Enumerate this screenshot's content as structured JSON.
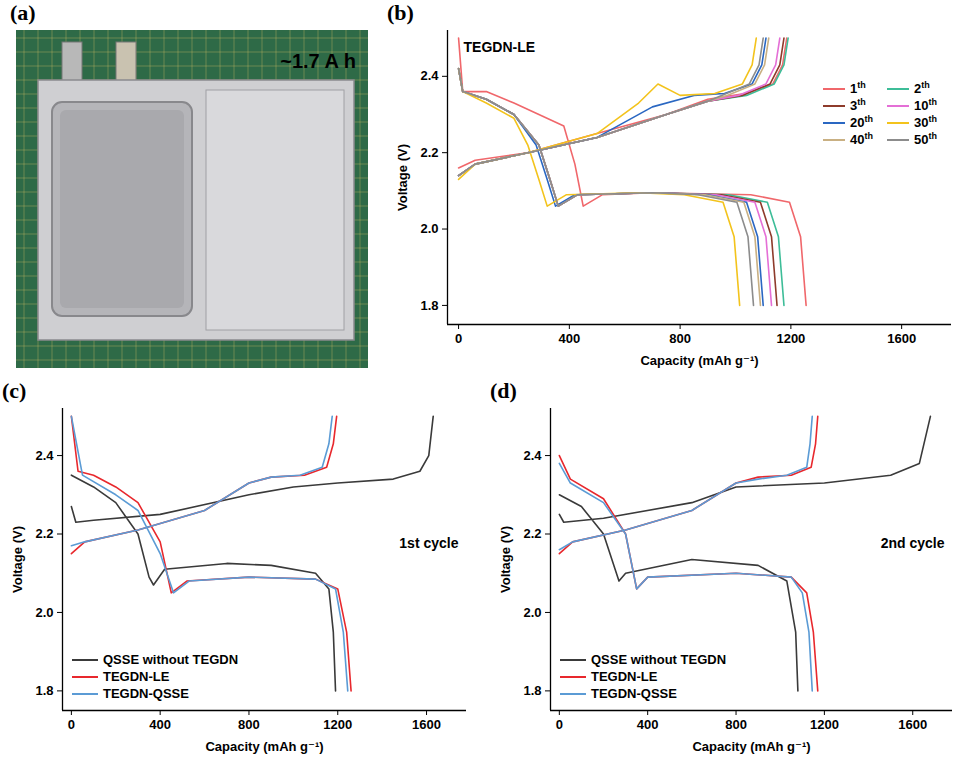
{
  "chart_data": [
    {
      "type": "image",
      "panel": "(a)",
      "annotation": "~1.7 A h"
    },
    {
      "type": "line",
      "panel": "(b)",
      "title": "TEGDN-LE",
      "x_label": "Capacity (mAh g⁻¹)",
      "y_label": "Voltage (V)",
      "xlim": [
        -40,
        1780
      ],
      "ylim": [
        1.75,
        2.52
      ],
      "xticks": [
        0,
        400,
        800,
        1200,
        1600
      ],
      "yticks": [
        1.8,
        {
          "value": 2,
          "label": "2.0"
        },
        2.2,
        2.4
      ],
      "legend": "upper right",
      "series": [
        {
          "name": "1th",
          "color": "#f0676b",
          "x": [
            0,
            15,
            100,
            200,
            380,
            420,
            450,
            520,
            700,
            1055,
            1195,
            1235,
            1255,
            null,
            0,
            60,
            250,
            500,
            750,
            900,
            1035,
            1135,
            1170,
            1185
          ],
          "values": [
            2.5,
            2.36,
            2.36,
            2.33,
            2.27,
            2.17,
            2.06,
            2.09,
            2.095,
            2.09,
            2.07,
            1.98,
            1.8,
            null,
            2.16,
            2.18,
            2.2,
            2.25,
            2.3,
            2.34,
            2.355,
            2.38,
            2.43,
            2.5
          ]
        },
        {
          "name": "2th",
          "color": "#3dbd98",
          "x": [
            0,
            15,
            100,
            200,
            290,
            330,
            360,
            430,
            700,
            975,
            1115,
            1155,
            1175,
            null,
            0,
            60,
            250,
            500,
            750,
            900,
            1040,
            1140,
            1175,
            1190
          ],
          "values": [
            2.42,
            2.36,
            2.34,
            2.3,
            2.22,
            2.13,
            2.06,
            2.09,
            2.095,
            2.09,
            2.07,
            1.98,
            1.8,
            null,
            2.14,
            2.17,
            2.2,
            2.24,
            2.3,
            2.335,
            2.35,
            2.38,
            2.43,
            2.5
          ]
        },
        {
          "name": "3th",
          "color": "#8e3b2b",
          "x": [
            0,
            15,
            100,
            200,
            290,
            330,
            360,
            430,
            700,
            950,
            1090,
            1130,
            1150,
            null,
            0,
            60,
            250,
            500,
            750,
            900,
            1025,
            1125,
            1160,
            1175
          ],
          "values": [
            2.42,
            2.36,
            2.34,
            2.3,
            2.22,
            2.13,
            2.06,
            2.09,
            2.095,
            2.09,
            2.07,
            1.98,
            1.8,
            null,
            2.14,
            2.17,
            2.2,
            2.24,
            2.3,
            2.335,
            2.35,
            2.38,
            2.43,
            2.5
          ]
        },
        {
          "name": "10th",
          "color": "#e46fd6",
          "x": [
            0,
            15,
            100,
            200,
            290,
            330,
            360,
            430,
            700,
            930,
            1070,
            1110,
            1130,
            null,
            0,
            60,
            250,
            500,
            750,
            900,
            1010,
            1110,
            1145,
            1160
          ],
          "values": [
            2.42,
            2.36,
            2.34,
            2.3,
            2.22,
            2.13,
            2.06,
            2.09,
            2.095,
            2.09,
            2.07,
            1.98,
            1.8,
            null,
            2.14,
            2.17,
            2.2,
            2.24,
            2.3,
            2.335,
            2.35,
            2.38,
            2.43,
            2.5
          ]
        },
        {
          "name": "20th",
          "color": "#2a67c2",
          "x": [
            0,
            15,
            100,
            200,
            280,
            320,
            350,
            420,
            700,
            900,
            1040,
            1080,
            1100,
            null,
            0,
            60,
            250,
            500,
            700,
            850,
            960,
            1060,
            1095,
            1110
          ],
          "values": [
            2.42,
            2.36,
            2.34,
            2.3,
            2.22,
            2.13,
            2.06,
            2.09,
            2.095,
            2.09,
            2.07,
            1.98,
            1.8,
            null,
            2.14,
            2.17,
            2.2,
            2.24,
            2.32,
            2.35,
            2.355,
            2.38,
            2.43,
            2.5
          ]
        },
        {
          "name": "30th",
          "color": "#f3c31c",
          "x": [
            0,
            15,
            100,
            200,
            250,
            290,
            320,
            390,
            650,
            815,
            955,
            995,
            1015,
            null,
            0,
            60,
            250,
            500,
            650,
            720,
            800,
            925,
            1025,
            1060,
            1075
          ],
          "values": [
            2.42,
            2.36,
            2.33,
            2.29,
            2.22,
            2.13,
            2.06,
            2.09,
            2.095,
            2.09,
            2.07,
            1.98,
            1.8,
            null,
            2.13,
            2.17,
            2.2,
            2.25,
            2.33,
            2.38,
            2.35,
            2.355,
            2.38,
            2.43,
            2.5
          ]
        },
        {
          "name": "40th",
          "color": "#c9b083",
          "x": [
            0,
            15,
            100,
            200,
            290,
            330,
            360,
            430,
            700,
            890,
            1030,
            1070,
            1090,
            null,
            0,
            60,
            250,
            500,
            750,
            900,
            970,
            1070,
            1105,
            1120
          ],
          "values": [
            2.42,
            2.36,
            2.34,
            2.3,
            2.22,
            2.13,
            2.06,
            2.09,
            2.095,
            2.09,
            2.07,
            1.98,
            1.8,
            null,
            2.14,
            2.17,
            2.2,
            2.24,
            2.3,
            2.335,
            2.35,
            2.38,
            2.43,
            2.5
          ]
        },
        {
          "name": "50th",
          "color": "#8c8c8c",
          "x": [
            0,
            15,
            100,
            200,
            290,
            330,
            360,
            430,
            700,
            865,
            1005,
            1045,
            1065,
            null,
            0,
            60,
            250,
            500,
            750,
            900,
            950,
            1050,
            1085,
            1100
          ],
          "values": [
            2.42,
            2.36,
            2.34,
            2.3,
            2.22,
            2.13,
            2.06,
            2.09,
            2.095,
            2.09,
            2.07,
            1.98,
            1.8,
            null,
            2.14,
            2.17,
            2.2,
            2.24,
            2.3,
            2.335,
            2.35,
            2.38,
            2.43,
            2.5
          ]
        }
      ]
    },
    {
      "type": "line",
      "panel": "(c)",
      "annotation": "1st cycle",
      "x_label": "Capacity (mAh g⁻¹)",
      "y_label": "Voltage (V)",
      "xlim": [
        -40,
        1780
      ],
      "ylim": [
        1.75,
        2.52
      ],
      "xticks": [
        0,
        400,
        800,
        1200,
        1600
      ],
      "yticks": [
        1.8,
        {
          "value": 2,
          "label": "2.0"
        },
        2.2,
        2.4
      ],
      "legend": "lower left",
      "series": [
        {
          "name": "QSSE without TEGDN",
          "color": "#3a3a3a",
          "x": [
            0,
            100,
            200,
            300,
            350,
            370,
            420,
            700,
            900,
            1100,
            1160,
            1180,
            1190,
            null,
            0,
            20,
            100,
            400,
            800,
            1000,
            1200,
            1450,
            1570,
            1610,
            1630
          ],
          "values": [
            2.35,
            2.32,
            2.28,
            2.2,
            2.09,
            2.07,
            2.11,
            2.125,
            2.12,
            2.1,
            2.06,
            1.95,
            1.8,
            null,
            2.27,
            2.23,
            2.235,
            2.25,
            2.3,
            2.32,
            2.33,
            2.34,
            2.36,
            2.4,
            2.5
          ]
        },
        {
          "name": "TEGDN-LE",
          "color": "#e8282d",
          "x": [
            0,
            30,
            100,
            200,
            300,
            400,
            450,
            520,
            800,
            1100,
            1200,
            1240,
            1260,
            null,
            0,
            60,
            300,
            600,
            800,
            900,
            1050,
            1150,
            1180,
            1195
          ],
          "values": [
            2.5,
            2.36,
            2.35,
            2.32,
            2.28,
            2.18,
            2.05,
            2.08,
            2.09,
            2.085,
            2.06,
            1.95,
            1.8,
            null,
            2.15,
            2.18,
            2.21,
            2.26,
            2.33,
            2.345,
            2.35,
            2.37,
            2.43,
            2.5
          ]
        },
        {
          "name": "TEGDN-QSSE",
          "color": "#5b9bd5",
          "x": [
            0,
            50,
            200,
            300,
            400,
            460,
            530,
            800,
            1100,
            1190,
            1225,
            1245,
            null,
            0,
            60,
            300,
            600,
            800,
            900,
            1030,
            1130,
            1160,
            1175
          ],
          "values": [
            2.5,
            2.35,
            2.3,
            2.26,
            2.15,
            2.05,
            2.08,
            2.09,
            2.085,
            2.06,
            1.95,
            1.8,
            null,
            2.17,
            2.18,
            2.21,
            2.26,
            2.33,
            2.345,
            2.35,
            2.37,
            2.43,
            2.5
          ]
        }
      ]
    },
    {
      "type": "line",
      "panel": "(d)",
      "annotation": "2nd cycle",
      "x_label": "Capacity (mAh g⁻¹)",
      "y_label": "Voltage (V)",
      "xlim": [
        -40,
        1780
      ],
      "ylim": [
        1.75,
        2.52
      ],
      "xticks": [
        0,
        400,
        800,
        1200,
        1600
      ],
      "yticks": [
        1.8,
        {
          "value": 2,
          "label": "2.0"
        },
        2.2,
        2.4
      ],
      "legend": "lower left",
      "series": [
        {
          "name": "QSSE without TEGDN",
          "color": "#3a3a3a",
          "x": [
            0,
            100,
            200,
            270,
            300,
            600,
            900,
            1030,
            1070,
            1080,
            null,
            0,
            20,
            200,
            600,
            800,
            1200,
            1500,
            1630,
            1680
          ],
          "values": [
            2.3,
            2.27,
            2.2,
            2.08,
            2.1,
            2.135,
            2.12,
            2.08,
            1.95,
            1.8,
            null,
            2.25,
            2.23,
            2.24,
            2.28,
            2.32,
            2.33,
            2.35,
            2.38,
            2.5
          ]
        },
        {
          "name": "TEGDN-LE",
          "color": "#e8282d",
          "x": [
            0,
            50,
            200,
            300,
            350,
            400,
            800,
            1050,
            1120,
            1150,
            1170,
            null,
            0,
            60,
            300,
            600,
            800,
            900,
            1050,
            1140,
            1160,
            1170
          ],
          "values": [
            2.4,
            2.34,
            2.29,
            2.2,
            2.06,
            2.09,
            2.1,
            2.09,
            2.05,
            1.95,
            1.8,
            null,
            2.15,
            2.18,
            2.21,
            2.26,
            2.33,
            2.345,
            2.35,
            2.37,
            2.43,
            2.5
          ]
        },
        {
          "name": "TEGDN-QSSE",
          "color": "#5b9bd5",
          "x": [
            0,
            50,
            200,
            300,
            350,
            400,
            800,
            1050,
            1100,
            1130,
            1145,
            null,
            0,
            60,
            300,
            600,
            800,
            900,
            1030,
            1120,
            1135,
            1145
          ],
          "values": [
            2.38,
            2.33,
            2.28,
            2.2,
            2.06,
            2.09,
            2.1,
            2.09,
            2.05,
            1.95,
            1.8,
            null,
            2.16,
            2.18,
            2.21,
            2.26,
            2.33,
            2.34,
            2.35,
            2.37,
            2.43,
            2.5
          ]
        }
      ]
    }
  ]
}
